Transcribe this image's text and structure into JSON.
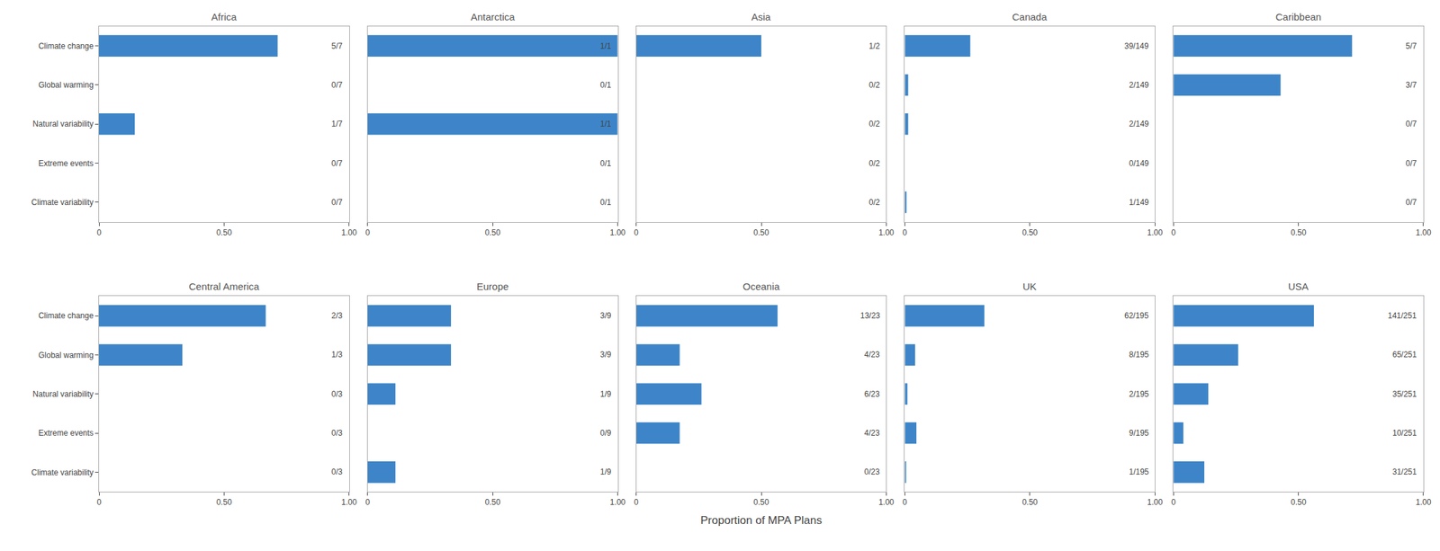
{
  "chart_data": [
    {
      "type": "bar",
      "title": "Africa",
      "orientation": "horizontal",
      "color": "#3d85c8",
      "categories": [
        "Climate change",
        "Global warming",
        "Natural variability",
        "Extreme events",
        "Climate variability"
      ],
      "values": [
        0.7143,
        0.0,
        0.1429,
        0.0,
        0.0
      ],
      "value_labels": [
        "5/7",
        "0/7",
        "1/7",
        "0/7",
        "0/7"
      ],
      "data_labels": true,
      "xlim": [
        0,
        1.0
      ],
      "xticks": [
        0,
        {
          "value": 0.5,
          "label": "0.50"
        },
        {
          "value": 1.0,
          "label": "1.00"
        }
      ],
      "grid": false
    },
    {
      "type": "bar",
      "title": "Antarctica",
      "orientation": "horizontal",
      "color": "#3d85c8",
      "categories": [
        "Climate change",
        "Global warming",
        "Natural variability",
        "Extreme events",
        "Climate variability"
      ],
      "values": [
        1.0,
        0.0,
        1.0,
        0.0,
        0.0
      ],
      "value_labels": [
        "1/1",
        "0/1",
        "1/1",
        "0/1",
        "0/1"
      ],
      "data_labels": true,
      "xlim": [
        0,
        1.0
      ],
      "xticks": [
        0,
        {
          "value": 0.5,
          "label": "0.50"
        },
        {
          "value": 1.0,
          "label": "1.00"
        }
      ],
      "grid": false,
      "tick_labels": "x"
    },
    {
      "type": "bar",
      "title": "Asia",
      "orientation": "horizontal",
      "color": "#3d85c8",
      "categories": [
        "Climate change",
        "Global warming",
        "Natural variability",
        "Extreme events",
        "Climate variability"
      ],
      "values": [
        0.5,
        0.0,
        0.0,
        0.0,
        0.0
      ],
      "value_labels": [
        "1/2",
        "0/2",
        "0/2",
        "0/2",
        "0/2"
      ],
      "data_labels": true,
      "xlim": [
        0,
        1.0
      ],
      "xticks": [
        0,
        {
          "value": 0.5,
          "label": "0.50"
        },
        {
          "value": 1.0,
          "label": "1.00"
        }
      ],
      "grid": false,
      "tick_labels": "x"
    },
    {
      "type": "bar",
      "title": "Canada",
      "orientation": "horizontal",
      "color": "#3d85c8",
      "categories": [
        "Climate change",
        "Global warming",
        "Natural variability",
        "Extreme events",
        "Climate variability"
      ],
      "values": [
        0.2617,
        0.0134,
        0.0134,
        0.0,
        0.0067
      ],
      "value_labels": [
        "39/149",
        "2/149",
        "2/149",
        "0/149",
        "1/149"
      ],
      "data_labels": true,
      "xlim": [
        0,
        1.0
      ],
      "xticks": [
        0,
        {
          "value": 0.5,
          "label": "0.50"
        },
        {
          "value": 1.0,
          "label": "1.00"
        }
      ],
      "grid": false,
      "tick_labels": "x"
    },
    {
      "type": "bar",
      "title": "Caribbean",
      "orientation": "horizontal",
      "color": "#3d85c8",
      "categories": [
        "Climate change",
        "Global warming",
        "Natural variability",
        "Extreme events",
        "Climate variability"
      ],
      "values": [
        0.7143,
        0.4286,
        0.0,
        0.0,
        0.0
      ],
      "value_labels": [
        "5/7",
        "3/7",
        "0/7",
        "0/7",
        "0/7"
      ],
      "data_labels": true,
      "xlim": [
        0,
        1.0
      ],
      "xticks": [
        0,
        {
          "value": 0.5,
          "label": "0.50"
        },
        {
          "value": 1.0,
          "label": "1.00"
        }
      ],
      "grid": false,
      "tick_labels": "x"
    },
    {
      "type": "bar",
      "title": "Central America",
      "orientation": "horizontal",
      "color": "#3d85c8",
      "categories": [
        "Climate change",
        "Global warming",
        "Natural variability",
        "Extreme events",
        "Climate variability"
      ],
      "values": [
        0.6667,
        0.3333,
        0.0,
        0.0,
        0.0
      ],
      "value_labels": [
        "2/3",
        "1/3",
        "0/3",
        "0/3",
        "0/3"
      ],
      "data_labels": true,
      "xlim": [
        0,
        1.0
      ],
      "xticks": [
        0,
        {
          "value": 0.5,
          "label": "0.50"
        },
        {
          "value": 1.0,
          "label": "1.00"
        }
      ],
      "grid": false
    },
    {
      "type": "bar",
      "title": "Europe",
      "orientation": "horizontal",
      "color": "#3d85c8",
      "categories": [
        "Climate change",
        "Global warming",
        "Natural variability",
        "Extreme events",
        "Climate variability"
      ],
      "values": [
        0.3333,
        0.3333,
        0.1111,
        0.0,
        0.1111
      ],
      "value_labels": [
        "3/9",
        "3/9",
        "1/9",
        "0/9",
        "1/9"
      ],
      "data_labels": true,
      "xlim": [
        0,
        1.0
      ],
      "xticks": [
        0,
        {
          "value": 0.5,
          "label": "0.50"
        },
        {
          "value": 1.0,
          "label": "1.00"
        }
      ],
      "grid": false,
      "tick_labels": "x"
    },
    {
      "type": "bar",
      "title": "Oceania",
      "orientation": "horizontal",
      "color": "#3d85c8",
      "categories": [
        "Climate change",
        "Global warming",
        "Natural variability",
        "Extreme events",
        "Climate variability"
      ],
      "values": [
        0.5652,
        0.1739,
        0.2609,
        0.1739,
        0.0
      ],
      "value_labels": [
        "13/23",
        "4/23",
        "6/23",
        "4/23",
        "0/23"
      ],
      "data_labels": true,
      "xlabel": "Proportion of MPA Plans",
      "xlim": [
        0,
        1.0
      ],
      "xticks": [
        0,
        {
          "value": 0.5,
          "label": "0.50"
        },
        {
          "value": 1.0,
          "label": "1.00"
        }
      ],
      "grid": false,
      "tick_labels": "x"
    },
    {
      "type": "bar",
      "title": "UK",
      "orientation": "horizontal",
      "color": "#3d85c8",
      "categories": [
        "Climate change",
        "Global warming",
        "Natural variability",
        "Extreme events",
        "Climate variability"
      ],
      "values": [
        0.3179,
        0.041,
        0.0103,
        0.0462,
        0.0051
      ],
      "value_labels": [
        "62/195",
        "8/195",
        "2/195",
        "9/195",
        "1/195"
      ],
      "data_labels": true,
      "xlim": [
        0,
        1.0
      ],
      "xticks": [
        0,
        {
          "value": 0.5,
          "label": "0.50"
        },
        {
          "value": 1.0,
          "label": "1.00"
        }
      ],
      "grid": false,
      "tick_labels": "x"
    },
    {
      "type": "bar",
      "title": "USA",
      "orientation": "horizontal",
      "color": "#3d85c8",
      "categories": [
        "Climate change",
        "Global warming",
        "Natural variability",
        "Extreme events",
        "Climate variability"
      ],
      "values": [
        0.5618,
        0.259,
        0.1394,
        0.0398,
        0.1235
      ],
      "value_labels": [
        "141/251",
        "65/251",
        "35/251",
        "10/251",
        "31/251"
      ],
      "data_labels": true,
      "xlim": [
        0,
        1.0
      ],
      "xticks": [
        0,
        {
          "value": 0.5,
          "label": "0.50"
        },
        {
          "value": 1.0,
          "label": "1.00"
        }
      ],
      "grid": false,
      "tick_labels": "x"
    }
  ]
}
